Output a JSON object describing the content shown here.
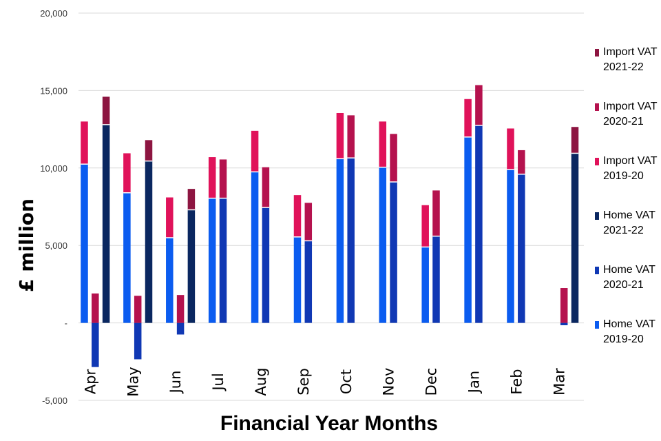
{
  "chart_data": {
    "type": "bar",
    "stacked": true,
    "xlabel": "Financial Year Months",
    "ylabel": "£ million",
    "ylim": [
      -5000,
      20000
    ],
    "yticks": [
      -5000,
      0,
      5000,
      10000,
      15000,
      20000
    ],
    "ytick_labels": [
      "-5,000",
      "-",
      "5,000",
      "10,000",
      "15,000",
      "20,000"
    ],
    "grid": true,
    "legend_position": "right",
    "categories": [
      "Apr",
      "May",
      "Jun",
      "Jul",
      "Aug",
      "Sep",
      "Oct",
      "Nov",
      "Dec",
      "Jan",
      "Feb",
      "Mar"
    ],
    "groups": [
      {
        "year": "2019-20",
        "home": {
          "name": "Home VAT 2019-20",
          "color": "#0b5cf0",
          "values": [
            10250,
            8400,
            5500,
            8050,
            9750,
            5550,
            10600,
            10050,
            4900,
            12000,
            9900,
            null
          ]
        },
        "import": {
          "name": "Import VAT 2019-20",
          "color": "#e0125a",
          "values": [
            2750,
            2550,
            2600,
            2650,
            2650,
            2700,
            2950,
            2950,
            2700,
            2450,
            2650,
            null
          ]
        }
      },
      {
        "year": "2020-21",
        "home": {
          "name": "Home VAT 2020-21",
          "color": "#1038b4",
          "values": [
            -2850,
            -2350,
            -750,
            8050,
            7450,
            5300,
            10650,
            9100,
            5600,
            12750,
            9600,
            -150
          ]
        },
        "import": {
          "name": "Import VAT 2020-21",
          "color": "#b5124e",
          "values": [
            1900,
            1750,
            1800,
            2500,
            2600,
            2450,
            2750,
            3100,
            2950,
            2600,
            1550,
            2250
          ]
        }
      },
      {
        "year": "2021-22",
        "home": {
          "name": "Home VAT 2021-22",
          "color": "#0a2760",
          "values": [
            12800,
            10450,
            7300,
            null,
            null,
            null,
            null,
            null,
            null,
            null,
            null,
            10950
          ]
        },
        "import": {
          "name": "Import VAT 2021-22",
          "color": "#8d1541",
          "values": [
            1800,
            1350,
            1350,
            null,
            null,
            null,
            null,
            null,
            null,
            null,
            null,
            1700
          ]
        }
      }
    ],
    "legend": [
      {
        "label_line1": "Import VAT",
        "label_line2": "2021-22",
        "color": "#8d1541"
      },
      {
        "label_line1": "Import VAT",
        "label_line2": "2020-21",
        "color": "#b5124e"
      },
      {
        "label_line1": "Import VAT",
        "label_line2": "2019-20",
        "color": "#e0125a"
      },
      {
        "label_line1": "Home VAT",
        "label_line2": "2021-22",
        "color": "#0a2760"
      },
      {
        "label_line1": "Home VAT",
        "label_line2": "2020-21",
        "color": "#1038b4"
      },
      {
        "label_line1": "Home VAT",
        "label_line2": "2019-20",
        "color": "#0b5cf0"
      }
    ]
  }
}
